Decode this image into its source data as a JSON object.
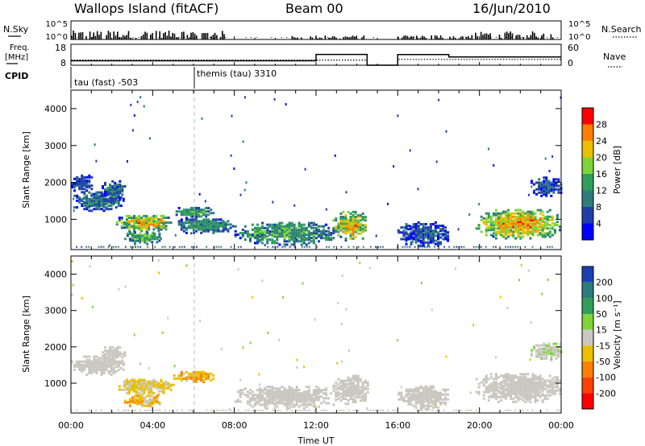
{
  "header": {
    "station": "Wallops Island (fitACF)",
    "beam": "Beam 00",
    "date": "16/Jun/2010"
  },
  "nsky_panel": {
    "label": "N.Sky",
    "ticks": [
      "10^5",
      "10^0"
    ],
    "right_label": "N.Search",
    "right_ticks": [
      "10^5",
      "10^0"
    ]
  },
  "freq_panel": {
    "label_line1": "Freq.",
    "label_line2": "[MHz]",
    "left_ticks": [
      18,
      8
    ],
    "right_label": "Nave",
    "right_ticks": [
      60,
      0
    ]
  },
  "cpid_panel": {
    "label": "CPID",
    "modes": [
      {
        "text": "tau (fast) -503",
        "start_hour": 0
      },
      {
        "text": "themis (tau) 3310",
        "start_hour": 6
      }
    ]
  },
  "chart_data": [
    {
      "type": "heatmap",
      "panel": "power",
      "xlabel": "Time UT",
      "ylabel": "Slant Range [km]",
      "xlim": [
        0,
        24
      ],
      "ylim": [
        180,
        4500
      ],
      "x_ticks": [
        "00:00",
        "04:00",
        "08:00",
        "12:00",
        "16:00",
        "20:00",
        "00:00"
      ],
      "y_ticks": [
        1000,
        2000,
        3000,
        4000
      ],
      "colorbar": {
        "label": "Power [dB]",
        "ticks": [
          4,
          8,
          12,
          16,
          20,
          24,
          28
        ],
        "range": [
          0,
          32
        ],
        "colors": [
          "#0000ff",
          "#1f3fa8",
          "#2e7d7d",
          "#2f9e5a",
          "#7fd43a",
          "#e8c000",
          "#ff8000",
          "#ff0000"
        ]
      },
      "echo_regions": [
        {
          "t0": 0.0,
          "t1": 2.6,
          "r0": 1200,
          "r1": 1700,
          "level": 10,
          "spread": 5
        },
        {
          "t0": 0.0,
          "t1": 1.0,
          "r0": 1700,
          "r1": 2200,
          "level": 8,
          "spread": 4
        },
        {
          "t0": 1.5,
          "t1": 2.6,
          "r0": 1500,
          "r1": 2000,
          "level": 10,
          "spread": 5
        },
        {
          "t0": 2.2,
          "t1": 5.0,
          "r0": 650,
          "r1": 1100,
          "level": 22,
          "spread": 7
        },
        {
          "t0": 2.6,
          "t1": 4.4,
          "r0": 300,
          "r1": 650,
          "level": 16,
          "spread": 6
        },
        {
          "t0": 5.0,
          "t1": 7.0,
          "r0": 1000,
          "r1": 1300,
          "level": 14,
          "spread": 4
        },
        {
          "t0": 5.0,
          "t1": 8.0,
          "r0": 600,
          "r1": 1000,
          "level": 12,
          "spread": 4
        },
        {
          "t0": 8.0,
          "t1": 13.0,
          "r0": 280,
          "r1": 900,
          "level": 14,
          "spread": 6
        },
        {
          "t0": 12.8,
          "t1": 14.5,
          "r0": 400,
          "r1": 1200,
          "level": 22,
          "spread": 7
        },
        {
          "t0": 16.0,
          "t1": 18.5,
          "r0": 250,
          "r1": 900,
          "level": 8,
          "spread": 5
        },
        {
          "t0": 19.8,
          "t1": 24.0,
          "r0": 450,
          "r1": 1250,
          "level": 24,
          "spread": 6
        },
        {
          "t0": 22.5,
          "t1": 24.0,
          "r0": 1600,
          "r1": 2100,
          "level": 8,
          "spread": 4
        }
      ]
    },
    {
      "type": "heatmap",
      "panel": "velocity",
      "xlabel": "Time UT",
      "ylabel": "Slant Range [km]",
      "xlim": [
        0,
        24
      ],
      "ylim": [
        180,
        4500
      ],
      "x_ticks": [
        "00:00",
        "04:00",
        "08:00",
        "12:00",
        "16:00",
        "20:00",
        "00:00"
      ],
      "y_ticks": [
        1000,
        2000,
        3000,
        4000
      ],
      "colorbar": {
        "label": "Velocity [m s⁻¹]",
        "ticks": [
          200,
          100,
          50,
          15,
          -15,
          -50,
          -100,
          -200
        ],
        "colors": [
          "#1c3fb4",
          "#2a7d7a",
          "#2f9e5a",
          "#7fd43a",
          "#c8c8c0",
          "#e8c000",
          "#ff8000",
          "#ff4000",
          "#ff0000"
        ]
      },
      "echo_regions": [
        {
          "t0": 0.0,
          "t1": 2.6,
          "r0": 1200,
          "r1": 1700,
          "vel": 0,
          "spread": 10
        },
        {
          "t0": 1.5,
          "t1": 2.6,
          "r0": 1500,
          "r1": 2000,
          "vel": 0,
          "spread": 10
        },
        {
          "t0": 2.2,
          "t1": 5.0,
          "r0": 650,
          "r1": 1100,
          "vel": -20,
          "spread": 30
        },
        {
          "t0": 2.6,
          "t1": 4.4,
          "r0": 300,
          "r1": 650,
          "vel": -30,
          "spread": 40
        },
        {
          "t0": 5.0,
          "t1": 7.0,
          "r0": 1000,
          "r1": 1300,
          "vel": -40,
          "spread": 30
        },
        {
          "t0": 8.0,
          "t1": 13.0,
          "r0": 280,
          "r1": 900,
          "vel": 0,
          "spread": 10
        },
        {
          "t0": 12.8,
          "t1": 14.5,
          "r0": 400,
          "r1": 1200,
          "vel": 0,
          "spread": 10
        },
        {
          "t0": 16.0,
          "t1": 18.5,
          "r0": 250,
          "r1": 900,
          "vel": 0,
          "spread": 12
        },
        {
          "t0": 19.8,
          "t1": 24.0,
          "r0": 450,
          "r1": 1250,
          "vel": 0,
          "spread": 8
        },
        {
          "t0": 22.5,
          "t1": 24.0,
          "r0": 1600,
          "r1": 2100,
          "vel": 10,
          "spread": 20
        }
      ]
    }
  ]
}
